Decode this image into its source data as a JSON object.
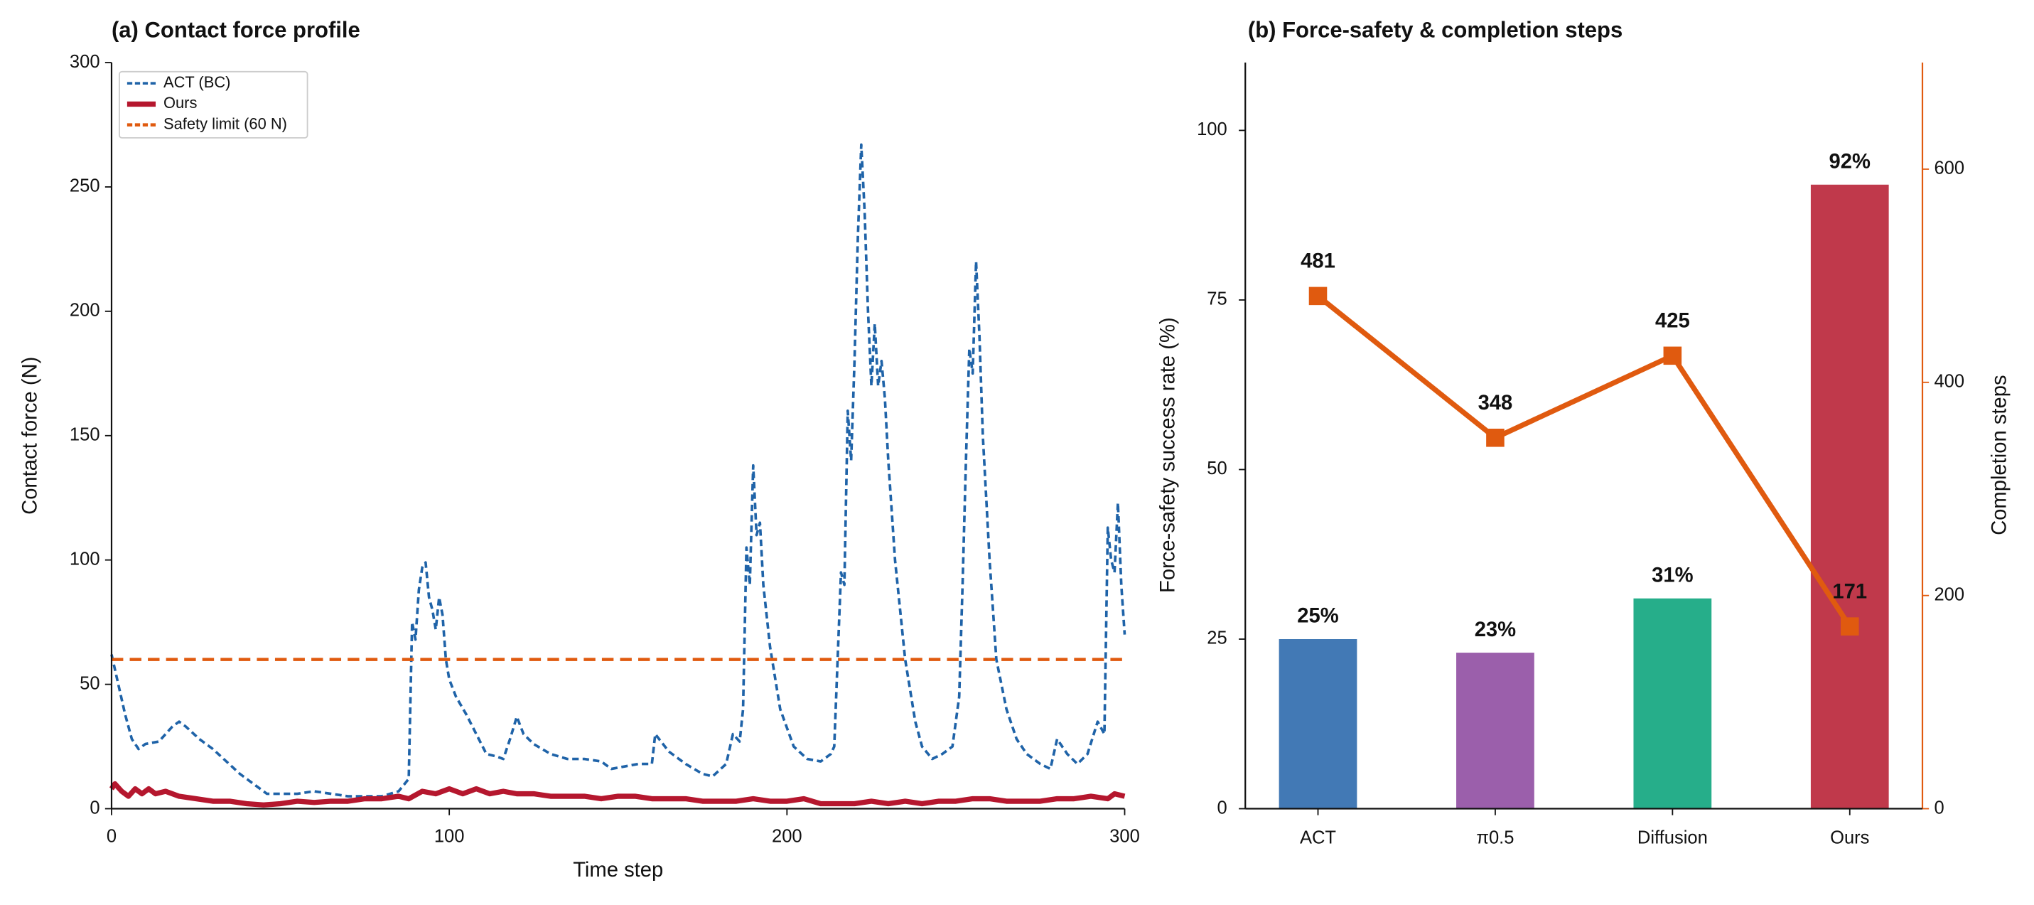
{
  "chart_data": [
    {
      "type": "line",
      "title": "(a) Contact force profile",
      "xlabel": "Time step",
      "ylabel": "Contact force (N)",
      "xlim": [
        0,
        300
      ],
      "ylim": [
        0,
        300
      ],
      "xticks": [
        0,
        100,
        200,
        300
      ],
      "yticks": [
        0,
        50,
        100,
        150,
        200,
        250,
        300
      ],
      "legend": "upper left",
      "series": [
        {
          "name": "ACT (BC)",
          "color": "#1f63a8",
          "style": "dashed",
          "x": [
            0,
            2,
            4,
            6,
            8,
            10,
            14,
            18,
            20,
            22,
            26,
            30,
            34,
            38,
            42,
            46,
            50,
            55,
            60,
            65,
            70,
            75,
            80,
            85,
            88,
            89,
            90,
            91,
            92,
            93,
            94,
            95,
            96,
            97,
            98,
            99,
            100,
            102,
            105,
            108,
            111,
            114,
            116,
            118,
            120,
            122,
            125,
            130,
            135,
            140,
            145,
            148,
            152,
            156,
            160,
            161,
            165,
            170,
            175,
            178,
            182,
            184,
            186,
            187,
            188,
            189,
            190,
            191,
            192,
            193,
            195,
            198,
            202,
            206,
            210,
            213,
            214,
            215,
            216,
            217,
            218,
            219,
            220,
            221,
            222,
            223,
            224,
            225,
            226,
            227,
            228,
            229,
            230,
            232,
            235,
            238,
            240,
            243,
            246,
            249,
            251,
            252,
            253,
            254,
            255,
            256,
            257,
            258,
            260,
            262,
            265,
            268,
            271,
            275,
            278,
            280,
            283,
            286,
            289,
            292,
            294,
            295,
            296,
            297,
            298,
            299,
            300
          ],
          "values": [
            62,
            50,
            38,
            28,
            24,
            26,
            27,
            33,
            35,
            33,
            28,
            24,
            19,
            14,
            10,
            6,
            6,
            6,
            7,
            6,
            5,
            5,
            5,
            7,
            12,
            75,
            68,
            88,
            97,
            99,
            85,
            80,
            72,
            85,
            78,
            60,
            52,
            45,
            38,
            30,
            22,
            21,
            20,
            28,
            37,
            30,
            26,
            22,
            20,
            20,
            19,
            16,
            17,
            18,
            18,
            30,
            23,
            18,
            14,
            13,
            18,
            30,
            27,
            40,
            105,
            90,
            138,
            110,
            115,
            90,
            65,
            40,
            25,
            20,
            19,
            22,
            25,
            60,
            95,
            90,
            160,
            140,
            180,
            230,
            267,
            240,
            200,
            170,
            195,
            170,
            180,
            165,
            140,
            100,
            60,
            35,
            25,
            20,
            22,
            25,
            45,
            90,
            140,
            185,
            175,
            220,
            190,
            150,
            100,
            60,
            40,
            28,
            22,
            18,
            16,
            28,
            22,
            18,
            22,
            35,
            30,
            113,
            100,
            95,
            123,
            90,
            70
          ]
        },
        {
          "name": "Ours",
          "color": "#b5172e",
          "style": "solid",
          "x": [
            0,
            1,
            3,
            5,
            7,
            9,
            11,
            13,
            16,
            20,
            25,
            30,
            35,
            40,
            45,
            50,
            55,
            60,
            65,
            70,
            75,
            80,
            85,
            88,
            92,
            96,
            100,
            104,
            108,
            112,
            116,
            120,
            125,
            130,
            135,
            140,
            145,
            150,
            155,
            160,
            165,
            170,
            175,
            180,
            185,
            190,
            195,
            200,
            205,
            210,
            215,
            220,
            225,
            230,
            235,
            240,
            245,
            250,
            255,
            260,
            265,
            270,
            275,
            280,
            285,
            290,
            295,
            297,
            300
          ],
          "values": [
            8,
            10,
            7,
            5,
            8,
            6,
            8,
            6,
            7,
            5,
            4,
            3,
            3,
            2,
            1.5,
            2,
            3,
            2.5,
            3,
            3,
            4,
            4,
            5,
            4,
            7,
            6,
            8,
            6,
            8,
            6,
            7,
            6,
            6,
            5,
            5,
            5,
            4,
            5,
            5,
            4,
            4,
            4,
            3,
            3,
            3,
            4,
            3,
            3,
            4,
            2,
            2,
            2,
            3,
            2,
            3,
            2,
            3,
            3,
            4,
            4,
            3,
            3,
            3,
            4,
            4,
            5,
            4,
            6,
            5
          ]
        },
        {
          "name": "Safety limit (60 N)",
          "color": "#e05a0f",
          "style": "limit",
          "x": [
            0,
            300
          ],
          "values": [
            60,
            60
          ]
        }
      ]
    },
    {
      "type": "bar",
      "title": "(b) Force-safety & completion steps",
      "ylabel": "Force-safety success rate (%)",
      "y2label": "Completion steps",
      "categories": [
        "ACT",
        "π0.5",
        "Diffusion",
        "Ours"
      ],
      "ylim": [
        0,
        110
      ],
      "yticks": [
        0,
        25,
        50,
        75,
        100
      ],
      "y2lim": [
        0,
        700
      ],
      "y2ticks": [
        0,
        200,
        400,
        600
      ],
      "ycolor": "#2f6ca8",
      "y2color": "#e05a0f",
      "series": [
        {
          "type": "bar",
          "colors": [
            "#4279b5",
            "#9b5fab",
            "#26ae8a",
            "#c0394b"
          ],
          "values": [
            25,
            23,
            31,
            92
          ],
          "value_labels": [
            "25%",
            "23%",
            "31%",
            "92%"
          ]
        },
        {
          "type": "line",
          "axis": "y2",
          "color": "#e05a0f",
          "values": [
            481,
            348,
            425,
            171
          ]
        }
      ]
    }
  ]
}
